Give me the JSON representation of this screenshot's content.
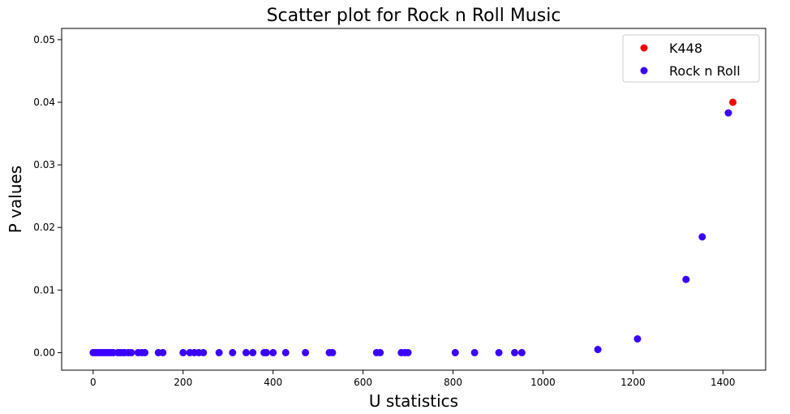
{
  "chart_data": {
    "type": "scatter",
    "title": "Scatter plot for Rock n Roll Music",
    "xlabel": "U statistics",
    "ylabel": "P values",
    "xlim": [
      -70,
      1495
    ],
    "ylim": [
      -0.0028,
      0.0518
    ],
    "xticks": [
      0,
      200,
      400,
      600,
      800,
      1000,
      1200,
      1400
    ],
    "yticks": [
      0.0,
      0.01,
      0.02,
      0.03,
      0.04,
      0.05
    ],
    "ytick_labels": [
      "0.00",
      "0.01",
      "0.02",
      "0.03",
      "0.04",
      "0.05"
    ],
    "grid": false,
    "legend_position": "top-right",
    "series": [
      {
        "name": "K448",
        "color": "#ff0000",
        "points": [
          [
            1422,
            0.04
          ]
        ]
      },
      {
        "name": "Rock n Roll",
        "color": "#3a00ff",
        "points": [
          [
            0,
            0.0
          ],
          [
            5,
            0.0
          ],
          [
            10,
            0.0
          ],
          [
            15,
            0.0
          ],
          [
            20,
            0.0
          ],
          [
            25,
            0.0
          ],
          [
            30,
            0.0
          ],
          [
            35,
            0.0
          ],
          [
            40,
            0.0
          ],
          [
            45,
            0.0
          ],
          [
            55,
            0.0
          ],
          [
            60,
            0.0
          ],
          [
            65,
            0.0
          ],
          [
            70,
            0.0
          ],
          [
            78,
            0.0
          ],
          [
            85,
            0.0
          ],
          [
            100,
            0.0
          ],
          [
            108,
            0.0
          ],
          [
            115,
            0.0
          ],
          [
            145,
            0.0
          ],
          [
            155,
            0.0
          ],
          [
            200,
            0.0
          ],
          [
            215,
            0.0
          ],
          [
            225,
            0.0
          ],
          [
            235,
            0.0
          ],
          [
            245,
            0.0
          ],
          [
            280,
            0.0
          ],
          [
            310,
            0.0
          ],
          [
            340,
            0.0
          ],
          [
            355,
            0.0
          ],
          [
            380,
            0.0
          ],
          [
            385,
            0.0
          ],
          [
            400,
            0.0
          ],
          [
            428,
            0.0
          ],
          [
            472,
            0.0
          ],
          [
            525,
            0.0
          ],
          [
            532,
            0.0
          ],
          [
            630,
            0.0
          ],
          [
            638,
            0.0
          ],
          [
            685,
            0.0
          ],
          [
            693,
            0.0
          ],
          [
            700,
            0.0
          ],
          [
            805,
            0.0
          ],
          [
            848,
            0.0
          ],
          [
            902,
            0.0
          ],
          [
            937,
            0.0
          ],
          [
            953,
            0.0
          ],
          [
            1122,
            0.0005
          ],
          [
            1210,
            0.0022
          ],
          [
            1318,
            0.0117
          ],
          [
            1354,
            0.0185
          ],
          [
            1412,
            0.0383
          ]
        ]
      }
    ]
  }
}
